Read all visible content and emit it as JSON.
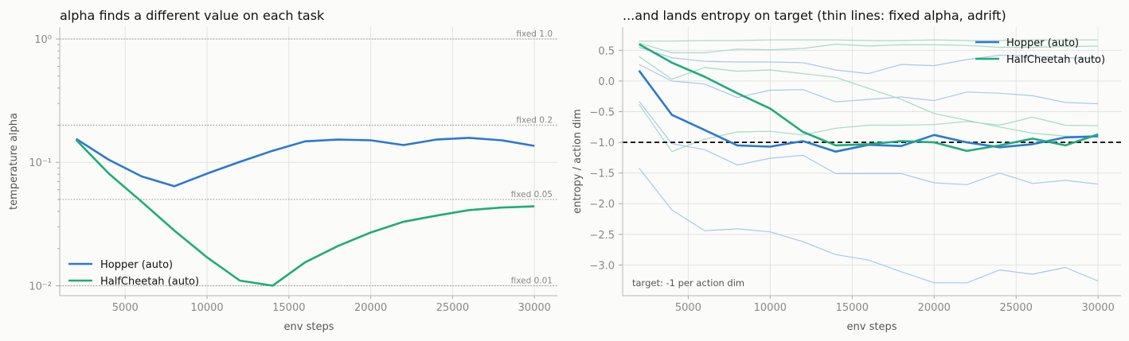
{
  "chart_data": [
    {
      "type": "line",
      "title": "alpha finds a different value on each task",
      "xlabel": "env steps",
      "ylabel": "temperature alpha",
      "yscale": "log",
      "xlim": [
        1000,
        31400
      ],
      "ylim": [
        0.0083,
        1.25
      ],
      "xticks": [
        5000,
        10000,
        15000,
        20000,
        25000,
        30000
      ],
      "yticks": [
        0.01,
        0.1,
        1.0
      ],
      "ytick_labels": [
        "10⁻²",
        "10⁻¹",
        "10⁰"
      ],
      "grid": true,
      "legend_position": "lower-left",
      "x": [
        2000,
        4000,
        6000,
        8000,
        10000,
        12000,
        14000,
        16000,
        18000,
        20000,
        22000,
        24000,
        26000,
        28000,
        30000
      ],
      "series": [
        {
          "name": "Hopper (auto)",
          "color": "#2b78d4",
          "values": [
            0.155,
            0.105,
            0.077,
            0.064,
            0.081,
            0.101,
            0.124,
            0.148,
            0.153,
            0.151,
            0.138,
            0.153,
            0.158,
            0.151,
            0.136
          ]
        },
        {
          "name": "HalfCheetah (auto)",
          "color": "#1fab7b",
          "values": [
            0.152,
            0.081,
            0.048,
            0.028,
            0.017,
            0.011,
            0.01,
            0.0155,
            0.021,
            0.027,
            0.033,
            0.037,
            0.041,
            0.043,
            0.044
          ]
        }
      ],
      "reference_lines": [
        {
          "value": 1.0,
          "label": "fixed 1.0"
        },
        {
          "value": 0.2,
          "label": "fixed 0.2"
        },
        {
          "value": 0.05,
          "label": "fixed 0.05"
        },
        {
          "value": 0.01,
          "label": "fixed 0.01"
        }
      ]
    },
    {
      "type": "line",
      "title": "...and lands entropy on target (thin lines: fixed alpha, adrift)",
      "xlabel": "env steps",
      "ylabel": "entropy / action dim",
      "xlim": [
        1000,
        31400
      ],
      "ylim": [
        -3.5,
        0.88
      ],
      "xticks": [
        5000,
        10000,
        15000,
        20000,
        25000,
        30000
      ],
      "yticks": [
        0.5,
        0.0,
        -0.5,
        -1.0,
        -1.5,
        -2.0,
        -2.5,
        -3.0
      ],
      "ytick_labels": [
        "0.5",
        "0.0",
        "−0.5",
        "−1.0",
        "−1.5",
        "−2.0",
        "−2.5",
        "−3.0"
      ],
      "grid": true,
      "legend_position": "top-right",
      "target": -1.0,
      "annotation": "target: -1 per action dim",
      "x": [
        2000,
        4000,
        6000,
        8000,
        10000,
        12000,
        14000,
        16000,
        18000,
        20000,
        22000,
        24000,
        26000,
        28000,
        30000
      ],
      "series": [
        {
          "name": "Hopper (auto)",
          "color": "#2b78d4",
          "values": [
            0.17,
            -0.55,
            -0.8,
            -1.05,
            -1.07,
            -0.98,
            -1.15,
            -1.04,
            -1.06,
            -0.88,
            -1.0,
            -1.08,
            -1.03,
            -0.92,
            -0.9
          ]
        },
        {
          "name": "HalfCheetah (auto)",
          "color": "#1fab7b",
          "values": [
            0.6,
            0.3,
            0.07,
            -0.2,
            -0.45,
            -0.83,
            -1.05,
            -1.03,
            -0.98,
            -1.0,
            -1.14,
            -1.05,
            -0.94,
            -1.05,
            -0.87
          ]
        }
      ],
      "thin_series": [
        {
          "color": "#a8c8ef",
          "values": [
            0.55,
            0.38,
            0.32,
            0.31,
            0.31,
            0.3,
            0.18,
            0.12,
            0.27,
            0.25,
            0.35,
            0.42,
            0.4,
            0.38,
            0.37
          ]
        },
        {
          "color": "#a8c8ef",
          "values": [
            0.27,
            0.0,
            -0.05,
            -0.27,
            -0.15,
            -0.14,
            -0.34,
            -0.3,
            -0.26,
            -0.32,
            -0.18,
            -0.2,
            -0.24,
            -0.35,
            -0.37
          ]
        },
        {
          "color": "#a8c8ef",
          "values": [
            -0.33,
            -1.02,
            -1.12,
            -1.37,
            -1.26,
            -1.21,
            -1.51,
            -1.51,
            -1.51,
            -1.66,
            -1.69,
            -1.5,
            -1.67,
            -1.62,
            -1.68
          ]
        },
        {
          "color": "#a8c8ef",
          "values": [
            -1.42,
            -2.1,
            -2.44,
            -2.41,
            -2.46,
            -2.62,
            -2.83,
            -2.92,
            -3.11,
            -3.29,
            -3.29,
            -3.08,
            -3.15,
            -3.04,
            -3.26
          ]
        },
        {
          "color": "#a3dcc4",
          "values": [
            0.65,
            0.65,
            0.66,
            0.66,
            0.67,
            0.67,
            0.67,
            0.66,
            0.66,
            0.67,
            0.66,
            0.66,
            0.67,
            0.67,
            0.67
          ]
        },
        {
          "color": "#a3dcc4",
          "values": [
            0.62,
            0.46,
            0.46,
            0.52,
            0.51,
            0.53,
            0.6,
            0.57,
            0.59,
            0.59,
            0.58,
            0.55,
            0.55,
            0.56,
            0.57
          ]
        },
        {
          "color": "#a3dcc4",
          "values": [
            0.4,
            0.03,
            0.22,
            0.16,
            0.18,
            0.12,
            0.06,
            -0.12,
            -0.3,
            -0.53,
            -0.64,
            -0.75,
            -0.85,
            -0.9,
            -0.9
          ]
        },
        {
          "color": "#a3dcc4",
          "values": [
            -0.38,
            -1.15,
            -0.95,
            -0.83,
            -0.82,
            -0.88,
            -0.77,
            -0.72,
            -0.72,
            -0.71,
            -0.66,
            -0.72,
            -0.59,
            -0.72,
            -0.73
          ]
        }
      ]
    }
  ]
}
